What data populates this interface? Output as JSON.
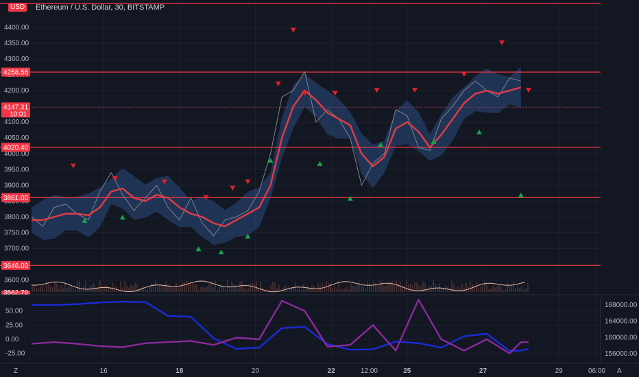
{
  "header": {
    "currency": "USD",
    "symbol_title": "Ethereum / U.S. Dollar, 30, BITSTAMP",
    "zoom_label": "Z",
    "auto_label": "A"
  },
  "colors": {
    "background": "#131722",
    "grid": "#1e2230",
    "level_line": "#f23645",
    "price": "#7f8590",
    "ma": "#e23c45",
    "band": "#2a4a80",
    "signal_up": "#1aa34a",
    "signal_down": "#e0202c",
    "volume_ma": "#e8b9a3",
    "osc_blue": "#1a2bd8",
    "osc_purple": "#8b2a9c"
  },
  "chart_data": [
    {
      "type": "line",
      "title": "Ethereum / U.S. Dollar, 30, BITSTAMP",
      "x_ticks": [
        {
          "x": 1,
          "label": "16"
        },
        {
          "x": 3,
          "label": "18"
        },
        {
          "x": 5,
          "label": "20"
        },
        {
          "x": 7,
          "label": "22"
        },
        {
          "x": 8,
          "label": "12:00"
        },
        {
          "x": 9,
          "label": "25"
        },
        {
          "x": 11,
          "label": "27"
        },
        {
          "x": 13,
          "label": "29"
        },
        {
          "x": 14,
          "label": "06:00"
        }
      ],
      "x_range": [
        -0.9,
        14.1
      ],
      "ylim": [
        3562,
        4476
      ],
      "y_ticks": [
        "3600.00",
        "3650.00",
        "3700.00",
        "3750.00",
        "3800.00",
        "3850.00",
        "3900.00",
        "3950.00",
        "4000.00",
        "4050.00",
        "4100.00",
        "4150.00",
        "4200.00",
        "4250.00",
        "4300.00",
        "4350.00",
        "4400.00"
      ],
      "y_tick_values": [
        3600,
        3650,
        3700,
        3750,
        3800,
        3850,
        3900,
        3950,
        4000,
        4050,
        4100,
        4150,
        4200,
        4250,
        4300,
        4350,
        4400
      ],
      "grid": true,
      "levels": [
        {
          "value": 4475.0,
          "label": ""
        },
        {
          "value": 4258.56,
          "label": "4258.56"
        },
        {
          "value": 4020.4,
          "label": "4020.40"
        },
        {
          "value": 3861.0,
          "label": "3861.00"
        },
        {
          "value": 3646.0,
          "label": "3646.00"
        }
      ],
      "last_price": {
        "label": "4147.31",
        "countdown": "10:01",
        "value": 4147.31
      },
      "bottom_label": "3562.79",
      "series": [
        {
          "kind": "price",
          "x": [
            -0.9,
            -0.6,
            -0.3,
            0.0,
            0.3,
            0.6,
            0.9,
            1.2,
            1.5,
            1.8,
            2.1,
            2.4,
            2.7,
            3.0,
            3.3,
            3.6,
            3.9,
            4.2,
            4.5,
            4.8,
            5.1,
            5.4,
            5.7,
            6.0,
            6.3,
            6.6,
            6.9,
            7.2,
            7.5,
            7.8,
            8.1,
            8.4,
            8.7,
            9.0,
            9.3,
            9.6,
            9.9,
            10.2,
            10.5,
            10.8,
            11.1,
            11.4,
            11.7,
            12.0
          ],
          "values": [
            3800,
            3770,
            3830,
            3840,
            3810,
            3790,
            3880,
            3940,
            3870,
            3820,
            3860,
            3900,
            3830,
            3790,
            3860,
            3780,
            3740,
            3790,
            3800,
            3820,
            3880,
            4000,
            4180,
            4200,
            4260,
            4100,
            4140,
            4110,
            4050,
            3900,
            3970,
            4000,
            4140,
            4120,
            4020,
            4010,
            4110,
            4150,
            4200,
            4230,
            4200,
            4180,
            4240,
            4230
          ]
        },
        {
          "kind": "moving-average",
          "x": [
            -0.9,
            -0.6,
            -0.3,
            0.0,
            0.3,
            0.6,
            0.9,
            1.2,
            1.5,
            1.8,
            2.1,
            2.4,
            2.7,
            3.0,
            3.3,
            3.6,
            3.9,
            4.2,
            4.5,
            4.8,
            5.1,
            5.4,
            5.7,
            6.0,
            6.3,
            6.6,
            6.9,
            7.2,
            7.5,
            7.8,
            8.1,
            8.4,
            8.7,
            9.0,
            9.3,
            9.6,
            9.9,
            10.2,
            10.5,
            10.8,
            11.1,
            11.4,
            11.7,
            12.0
          ],
          "values": [
            3790,
            3790,
            3800,
            3810,
            3810,
            3805,
            3830,
            3880,
            3890,
            3860,
            3850,
            3870,
            3860,
            3830,
            3810,
            3800,
            3780,
            3770,
            3790,
            3810,
            3830,
            3900,
            4050,
            4150,
            4200,
            4170,
            4130,
            4110,
            4090,
            4000,
            3960,
            3990,
            4080,
            4100,
            4070,
            4020,
            4060,
            4110,
            4160,
            4190,
            4200,
            4190,
            4200,
            4210
          ]
        }
      ],
      "signals_down": [
        {
          "x": 0.2,
          "value": 3960
        },
        {
          "x": 1.3,
          "value": 3920
        },
        {
          "x": 2.6,
          "value": 3910
        },
        {
          "x": 3.7,
          "value": 3860
        },
        {
          "x": 4.4,
          "value": 3890
        },
        {
          "x": 4.8,
          "value": 3910
        },
        {
          "x": 5.6,
          "value": 4220
        },
        {
          "x": 6.0,
          "value": 4390
        },
        {
          "x": 6.3,
          "value": 4190
        },
        {
          "x": 7.1,
          "value": 4190
        },
        {
          "x": 8.2,
          "value": 4200
        },
        {
          "x": 9.2,
          "value": 4200
        },
        {
          "x": 10.5,
          "value": 4250
        },
        {
          "x": 11.5,
          "value": 4350
        },
        {
          "x": 12.2,
          "value": 4200
        }
      ],
      "signals_up": [
        {
          "x": 0.5,
          "value": 3790
        },
        {
          "x": 1.5,
          "value": 3800
        },
        {
          "x": 3.5,
          "value": 3700
        },
        {
          "x": 4.1,
          "value": 3690
        },
        {
          "x": 4.8,
          "value": 3740
        },
        {
          "x": 5.4,
          "value": 3980
        },
        {
          "x": 6.7,
          "value": 3970
        },
        {
          "x": 7.5,
          "value": 3860
        },
        {
          "x": 8.3,
          "value": 4030
        },
        {
          "x": 9.7,
          "value": 4040
        },
        {
          "x": 10.9,
          "value": 4070
        },
        {
          "x": 12.0,
          "value": 3870
        }
      ]
    },
    {
      "type": "line",
      "x_range": [
        -0.9,
        14.1
      ],
      "left_ylim": [
        -40,
        75
      ],
      "left_ticks": [
        "-25.00",
        "0.00",
        "25.00",
        "50.00"
      ],
      "left_tick_values": [
        -25,
        0,
        25,
        50
      ],
      "right_ylim": [
        154000,
        170000
      ],
      "right_ticks": [
        "156000.00",
        "160000.00",
        "164000.00",
        "168000.00"
      ],
      "right_tick_values": [
        156000,
        160000,
        164000,
        168000
      ],
      "series": [
        {
          "kind": "blue",
          "x": [
            -0.9,
            -0.3,
            0.3,
            0.9,
            1.5,
            2.1,
            2.7,
            3.3,
            3.9,
            4.5,
            5.1,
            5.7,
            6.3,
            6.9,
            7.5,
            8.1,
            8.7,
            9.3,
            9.9,
            10.5,
            11.1,
            11.7,
            12.0,
            12.2
          ],
          "values": [
            168000,
            168000,
            168200,
            168600,
            168800,
            168700,
            165300,
            165100,
            159800,
            157200,
            157500,
            162300,
            162600,
            158400,
            157000,
            157100,
            159000,
            158600,
            157500,
            160300,
            160900,
            156700,
            156800,
            157200
          ]
        },
        {
          "kind": "purple",
          "x": [
            -0.9,
            -0.3,
            0.3,
            0.9,
            1.5,
            2.1,
            2.7,
            3.3,
            3.9,
            4.5,
            5.1,
            5.7,
            6.3,
            6.9,
            7.5,
            8.1,
            8.7,
            9.3,
            9.9,
            10.5,
            11.1,
            11.7,
            12.0,
            12.2
          ],
          "values": [
            -8,
            -5,
            -8,
            -12,
            -14,
            -7,
            -5,
            -3,
            -10,
            3,
            0,
            68,
            50,
            -13,
            -10,
            25,
            -20,
            70,
            0,
            -20,
            0,
            -25,
            -5,
            -5
          ]
        }
      ]
    }
  ]
}
